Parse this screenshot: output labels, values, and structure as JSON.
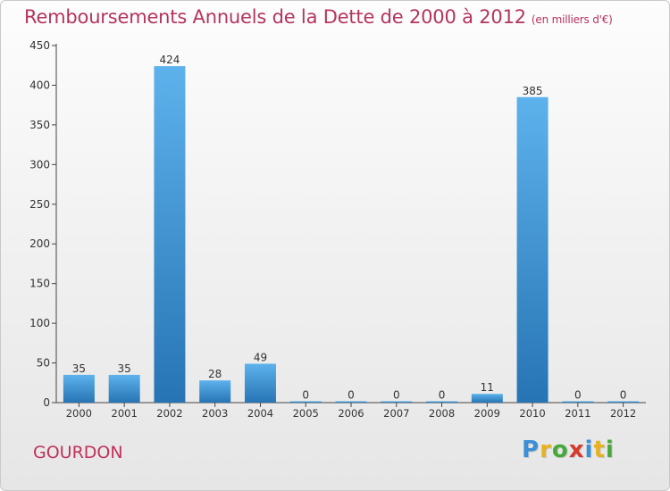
{
  "title": "Remboursements Annuels de la Dette de 2000 à 2012",
  "unit": "(en milliers d'€)",
  "commune": "GOURDON",
  "logo": {
    "letters": [
      {
        "ch": "P",
        "color": "#3a8fd6"
      },
      {
        "ch": "r",
        "color": "#e8b21e"
      },
      {
        "ch": "o",
        "color": "#48a83c"
      },
      {
        "ch": "x",
        "color": "#d63a2c"
      },
      {
        "ch": "i",
        "color": "#3a8fd6"
      },
      {
        "ch": "t",
        "color": "#e8b21e"
      },
      {
        "ch": "i",
        "color": "#48a83c"
      }
    ]
  },
  "chart_data": {
    "type": "bar",
    "categories": [
      "2000",
      "2001",
      "2002",
      "2003",
      "2004",
      "2005",
      "2006",
      "2007",
      "2008",
      "2009",
      "2010",
      "2011",
      "2012"
    ],
    "values": [
      35,
      35,
      424,
      28,
      49,
      0,
      0,
      0,
      0,
      11,
      385,
      0,
      0
    ],
    "data_labels": [
      "35",
      "35",
      "424",
      "28",
      "49",
      "0",
      "0",
      "0",
      "0",
      "11",
      "385",
      "0",
      "0"
    ],
    "ylim": [
      0,
      450
    ],
    "yticks": [
      0,
      50,
      100,
      150,
      200,
      250,
      300,
      350,
      400,
      450
    ],
    "grid": false,
    "bar_color_top": "#5db2ec",
    "bar_color_bottom": "#2774b4"
  }
}
